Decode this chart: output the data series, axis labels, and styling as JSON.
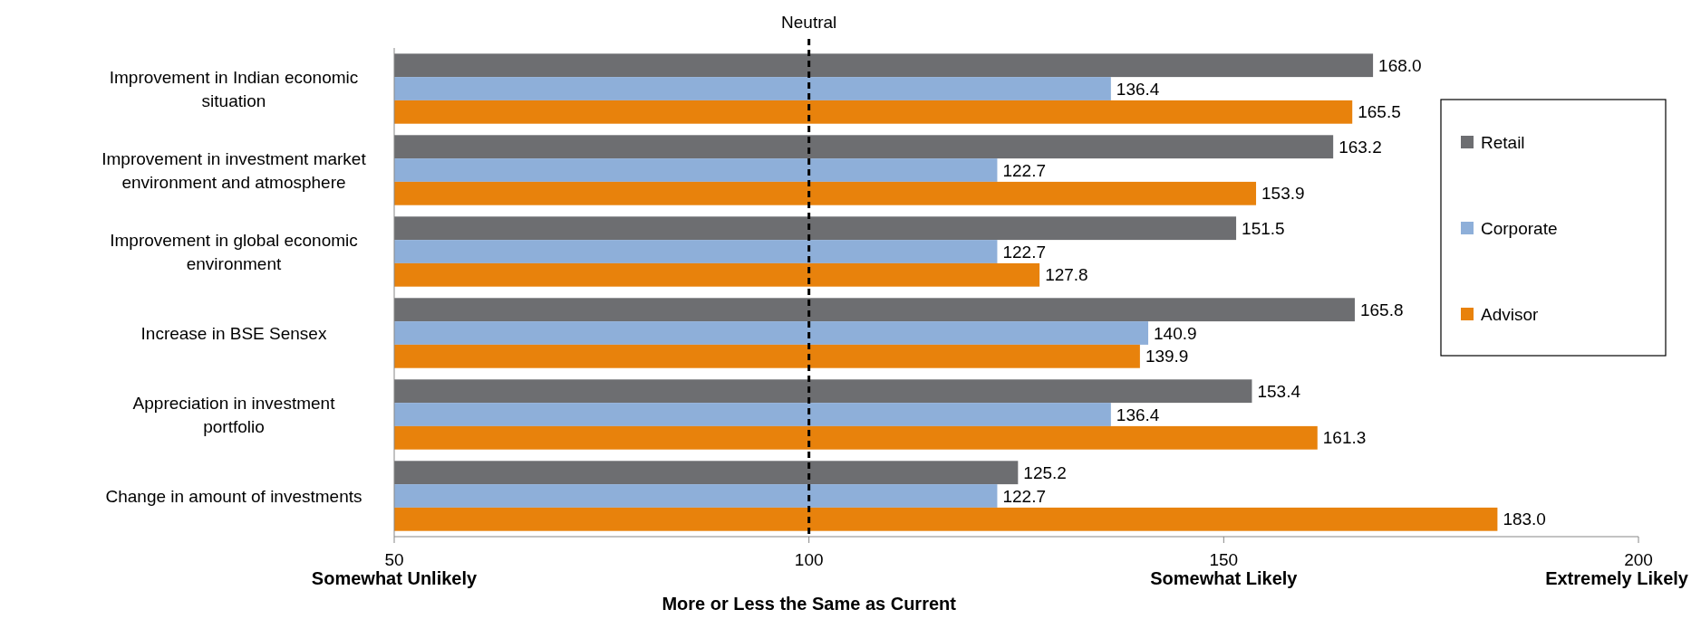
{
  "chart_data": {
    "type": "bar",
    "orientation": "horizontal",
    "categories": [
      "Improvement in Indian economic situation",
      "Improvement in investment market environment and atmosphere",
      "Improvement in global economic environment",
      "Increase in BSE Sensex",
      "Appreciation in investment portfolio",
      "Change in amount of investments"
    ],
    "series": [
      {
        "name": "Retail",
        "color": "#6d6e71",
        "values": [
          168.0,
          163.2,
          151.5,
          165.8,
          153.4,
          125.2
        ],
        "value_labels": [
          "168.0",
          "163.2",
          "151.5",
          "165.8",
          "153.4",
          "125.2"
        ]
      },
      {
        "name": "Corporate",
        "color": "#8eafd9",
        "values": [
          136.4,
          122.7,
          122.7,
          140.9,
          136.4,
          122.7
        ],
        "value_labels": [
          "136.4",
          "122.7",
          "122.7",
          "140.9",
          "136.4",
          "122.7"
        ]
      },
      {
        "name": "Advisor",
        "color": "#e8820c",
        "values": [
          165.5,
          153.9,
          127.8,
          139.9,
          161.3,
          183.0
        ],
        "value_labels": [
          "165.5",
          "153.9",
          "127.8",
          "139.9",
          "161.3",
          "183.0"
        ]
      }
    ],
    "xlim": [
      50,
      200
    ],
    "xticks": [
      50,
      100,
      150,
      200
    ],
    "legend": "right",
    "grid": false,
    "ref_lines": [
      {
        "axis": "x",
        "value": 100,
        "label": "Neutral",
        "line_style": "dashed",
        "color": "#000000"
      }
    ],
    "annotations": [
      "Somewhat Unlikely",
      "More or Less the Same as Current",
      "Somewhat Likely",
      "Extremely Likely"
    ]
  }
}
